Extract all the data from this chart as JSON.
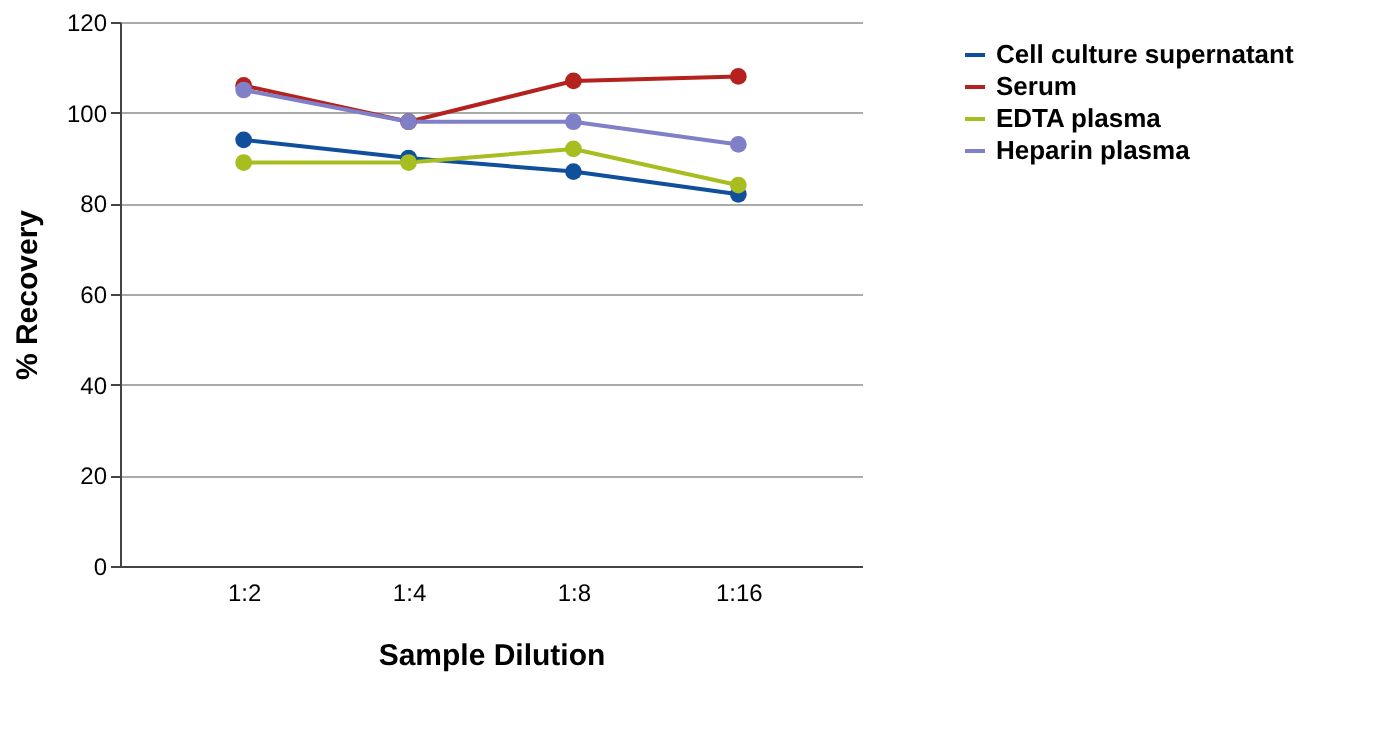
{
  "chart_data": {
    "type": "line",
    "xlabel": "Sample Dilution",
    "ylabel": "% Recovery",
    "categories": [
      "1:2",
      "1:4",
      "1:8",
      "1:16"
    ],
    "series": [
      {
        "name": "Cell culture supernatant",
        "color": "#0f4f9c",
        "values": [
          94,
          90,
          87,
          82
        ]
      },
      {
        "name": "Serum",
        "color": "#b5221d",
        "values": [
          106,
          98,
          107,
          108
        ]
      },
      {
        "name": "EDTA plasma",
        "color": "#a8bd1f",
        "values": [
          89,
          89,
          92,
          84
        ]
      },
      {
        "name": "Heparin plasma",
        "color": "#8080c8",
        "values": [
          105,
          98,
          98,
          93
        ]
      }
    ],
    "ylim": [
      0,
      120
    ],
    "yticks": [
      0,
      20,
      40,
      60,
      80,
      100,
      120
    ],
    "grid": "y",
    "legend": "right",
    "marker": "circle",
    "line_style": "solid"
  }
}
